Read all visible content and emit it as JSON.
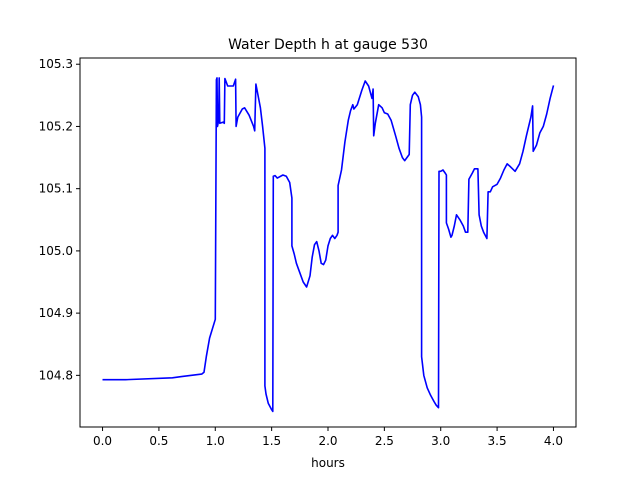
{
  "chart_data": {
    "type": "line",
    "title": "Water Depth h at gauge 530",
    "xlabel": "hours",
    "ylabel": "",
    "xlim": [
      -0.2,
      4.2
    ],
    "ylim": [
      104.717,
      105.31
    ],
    "x_ticks": [
      0.0,
      0.5,
      1.0,
      1.5,
      2.0,
      2.5,
      3.0,
      3.5,
      4.0
    ],
    "x_tick_labels": [
      "0.0",
      "0.5",
      "1.0",
      "1.5",
      "2.0",
      "2.5",
      "3.0",
      "3.5",
      "4.0"
    ],
    "y_ticks": [
      104.8,
      104.9,
      105.0,
      105.1,
      105.2,
      105.3
    ],
    "y_tick_labels": [
      "104.8",
      "104.9",
      "105.0",
      "105.1",
      "105.2",
      "105.3"
    ],
    "grid": false,
    "series": [
      {
        "color": "#0000ff",
        "points": [
          [
            0.0,
            104.793
          ],
          [
            0.2,
            104.793
          ],
          [
            0.62,
            104.796
          ],
          [
            0.7,
            104.798
          ],
          [
            0.88,
            104.802
          ],
          [
            0.9,
            104.805
          ],
          [
            0.92,
            104.83
          ],
          [
            0.95,
            104.86
          ],
          [
            1.0,
            104.89
          ],
          [
            1.01,
            105.275
          ],
          [
            1.015,
            105.278
          ],
          [
            1.02,
            105.2
          ],
          [
            1.03,
            105.21
          ],
          [
            1.035,
            105.278
          ],
          [
            1.04,
            105.205
          ],
          [
            1.07,
            105.207
          ],
          [
            1.08,
            105.205
          ],
          [
            1.085,
            105.277
          ],
          [
            1.11,
            105.265
          ],
          [
            1.16,
            105.265
          ],
          [
            1.18,
            105.276
          ],
          [
            1.185,
            105.2
          ],
          [
            1.2,
            105.215
          ],
          [
            1.24,
            105.228
          ],
          [
            1.26,
            105.23
          ],
          [
            1.3,
            105.218
          ],
          [
            1.34,
            105.2
          ],
          [
            1.35,
            105.193
          ],
          [
            1.36,
            105.268
          ],
          [
            1.4,
            105.23
          ],
          [
            1.42,
            105.2
          ],
          [
            1.44,
            105.165
          ],
          [
            1.44,
            104.783
          ],
          [
            1.45,
            104.77
          ],
          [
            1.47,
            104.755
          ],
          [
            1.5,
            104.745
          ],
          [
            1.51,
            104.742
          ],
          [
            1.515,
            105.12
          ],
          [
            1.53,
            105.121
          ],
          [
            1.55,
            105.117
          ],
          [
            1.6,
            105.122
          ],
          [
            1.63,
            105.12
          ],
          [
            1.66,
            105.11
          ],
          [
            1.68,
            105.085
          ],
          [
            1.68,
            105.008
          ],
          [
            1.7,
            104.995
          ],
          [
            1.72,
            104.98
          ],
          [
            1.75,
            104.965
          ],
          [
            1.78,
            104.95
          ],
          [
            1.81,
            104.942
          ],
          [
            1.84,
            104.96
          ],
          [
            1.86,
            104.99
          ],
          [
            1.88,
            105.01
          ],
          [
            1.9,
            105.015
          ],
          [
            1.92,
            105.0
          ],
          [
            1.94,
            104.98
          ],
          [
            1.96,
            104.978
          ],
          [
            1.98,
            104.985
          ],
          [
            2.0,
            105.008
          ],
          [
            2.02,
            105.02
          ],
          [
            2.04,
            105.025
          ],
          [
            2.06,
            105.02
          ],
          [
            2.08,
            105.025
          ],
          [
            2.09,
            105.03
          ],
          [
            2.09,
            105.105
          ],
          [
            2.12,
            105.13
          ],
          [
            2.15,
            105.175
          ],
          [
            2.18,
            105.21
          ],
          [
            2.2,
            105.225
          ],
          [
            2.22,
            105.235
          ],
          [
            2.23,
            105.228
          ],
          [
            2.26,
            105.235
          ],
          [
            2.3,
            105.258
          ],
          [
            2.33,
            105.273
          ],
          [
            2.36,
            105.265
          ],
          [
            2.39,
            105.245
          ],
          [
            2.4,
            105.26
          ],
          [
            2.405,
            105.185
          ],
          [
            2.42,
            105.205
          ],
          [
            2.45,
            105.235
          ],
          [
            2.48,
            105.23
          ],
          [
            2.5,
            105.222
          ],
          [
            2.53,
            105.22
          ],
          [
            2.56,
            105.21
          ],
          [
            2.6,
            105.185
          ],
          [
            2.63,
            105.165
          ],
          [
            2.66,
            105.15
          ],
          [
            2.68,
            105.145
          ],
          [
            2.7,
            105.15
          ],
          [
            2.72,
            105.155
          ],
          [
            2.73,
            105.235
          ],
          [
            2.75,
            105.25
          ],
          [
            2.77,
            105.255
          ],
          [
            2.8,
            105.248
          ],
          [
            2.82,
            105.235
          ],
          [
            2.83,
            105.215
          ],
          [
            2.83,
            104.83
          ],
          [
            2.85,
            104.8
          ],
          [
            2.88,
            104.78
          ],
          [
            2.91,
            104.768
          ],
          [
            2.94,
            104.758
          ],
          [
            2.96,
            104.752
          ],
          [
            2.98,
            104.748
          ],
          [
            2.985,
            105.128
          ],
          [
            3.0,
            105.128
          ],
          [
            3.02,
            105.13
          ],
          [
            3.04,
            105.125
          ],
          [
            3.05,
            105.122
          ],
          [
            3.05,
            105.045
          ],
          [
            3.07,
            105.035
          ],
          [
            3.09,
            105.022
          ],
          [
            3.1,
            105.025
          ],
          [
            3.12,
            105.04
          ],
          [
            3.14,
            105.058
          ],
          [
            3.17,
            105.05
          ],
          [
            3.2,
            105.04
          ],
          [
            3.22,
            105.03
          ],
          [
            3.24,
            105.03
          ],
          [
            3.25,
            105.115
          ],
          [
            3.28,
            105.125
          ],
          [
            3.3,
            105.132
          ],
          [
            3.33,
            105.132
          ],
          [
            3.34,
            105.058
          ],
          [
            3.36,
            105.04
          ],
          [
            3.38,
            105.03
          ],
          [
            3.41,
            105.02
          ],
          [
            3.42,
            105.095
          ],
          [
            3.44,
            105.095
          ],
          [
            3.46,
            105.103
          ],
          [
            3.5,
            105.107
          ],
          [
            3.53,
            105.117
          ],
          [
            3.56,
            105.13
          ],
          [
            3.59,
            105.14
          ],
          [
            3.62,
            105.135
          ],
          [
            3.66,
            105.128
          ],
          [
            3.7,
            105.14
          ],
          [
            3.73,
            105.16
          ],
          [
            3.76,
            105.185
          ],
          [
            3.8,
            105.215
          ],
          [
            3.815,
            105.233
          ],
          [
            3.82,
            105.16
          ],
          [
            3.85,
            105.17
          ],
          [
            3.88,
            105.19
          ],
          [
            3.91,
            105.2
          ],
          [
            3.94,
            105.22
          ],
          [
            3.97,
            105.245
          ],
          [
            4.0,
            105.266
          ]
        ]
      }
    ]
  }
}
